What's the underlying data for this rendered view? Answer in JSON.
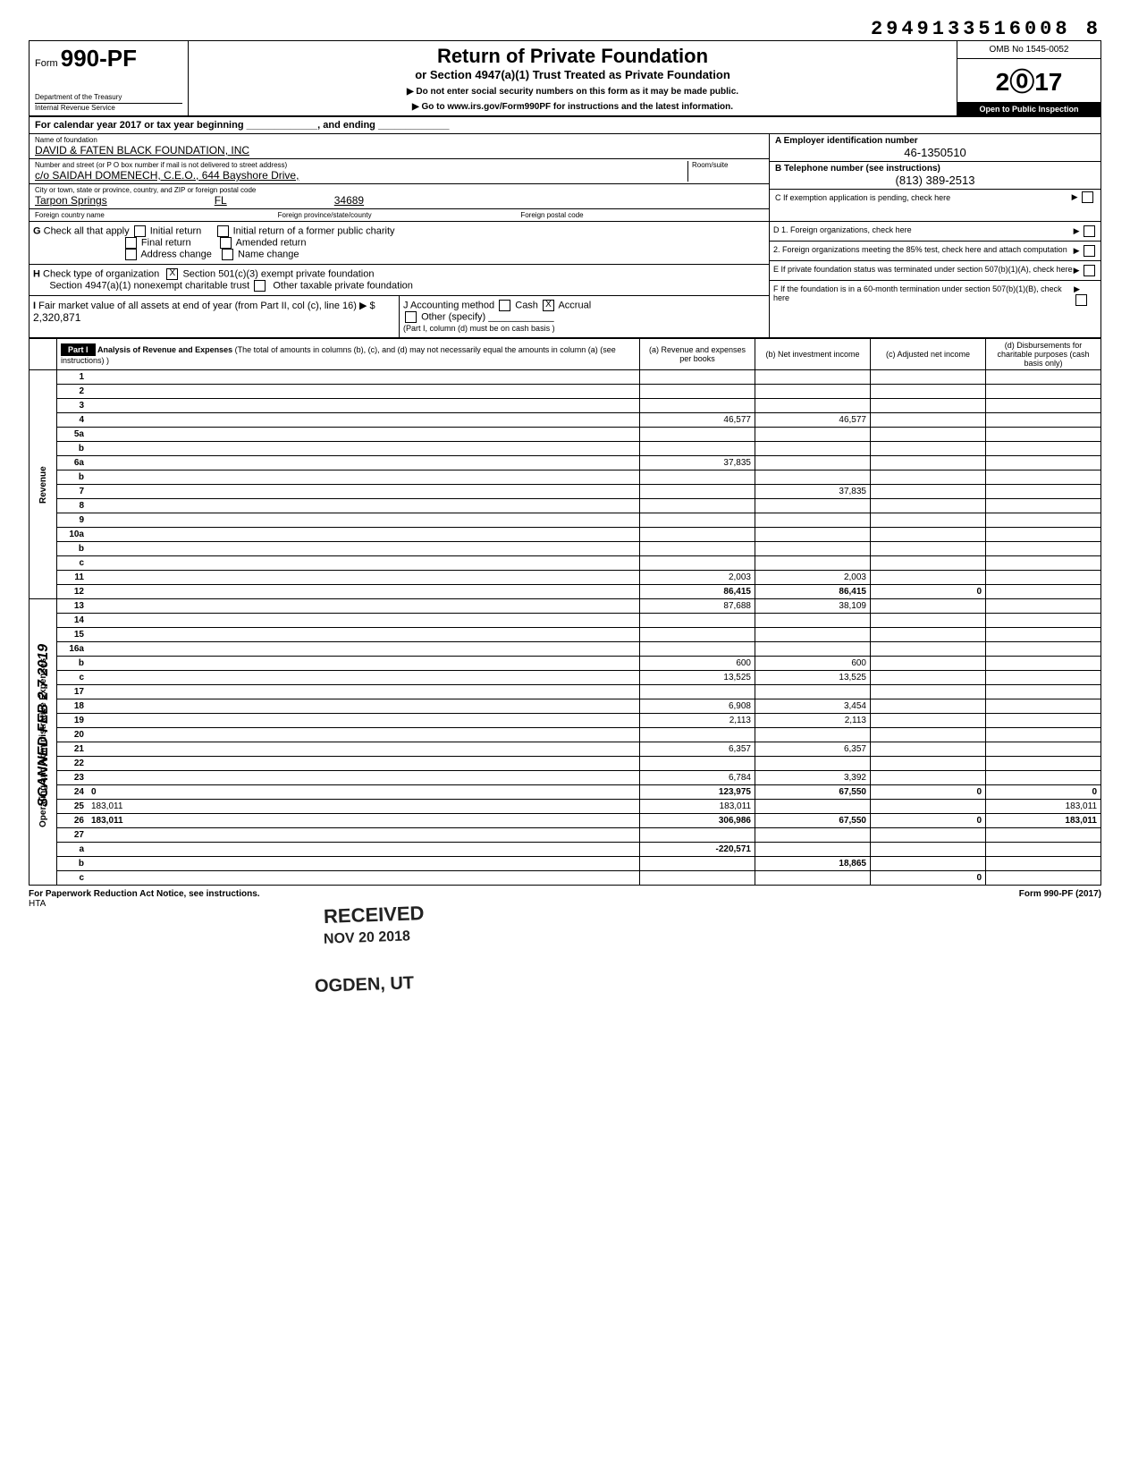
{
  "header": {
    "top_number": "2949133516008 8",
    "form_prefix": "Form",
    "form_number": "990-PF",
    "title": "Return of Private Foundation",
    "subtitle": "or Section 4947(a)(1) Trust Treated as Private Foundation",
    "note1": "Do not enter social security numbers on this form as it may be made public.",
    "note2": "Go to www.irs.gov/Form990PF for instructions and the latest information.",
    "dept1": "Department of the Treasury",
    "dept2": "Internal Revenue Service",
    "omb": "OMB No 1545-0052",
    "year": "2017",
    "year_display": "2⓪17",
    "open": "Open to Public Inspection",
    "cal_year": "For calendar year 2017 or tax year beginning _____________, and ending _____________"
  },
  "foundation": {
    "name_label": "Name of foundation",
    "name": "DAVID & FATEN BLACK FOUNDATION, INC",
    "addr_label": "Number and street (or P O box number if mail is not delivered to street address)",
    "room_label": "Room/suite",
    "addr": "c/o SAIDAH DOMENECH, C.E.O., 644 Bayshore Drive,",
    "city_label": "City or town, state or province, country, and ZIP or foreign postal code",
    "city": "Tarpon Springs",
    "state": "FL",
    "zip": "34689",
    "foreign_country_label": "Foreign country name",
    "foreign_province_label": "Foreign province/state/county",
    "foreign_postal_label": "Foreign postal code",
    "ein_label": "A Employer identification number",
    "ein": "46-1350510",
    "phone_label": "B Telephone number (see instructions)",
    "phone": "(813) 389-2513",
    "c_label": "C  If exemption application is pending, check here",
    "d1_label": "D  1. Foreign organizations, check here",
    "d2_label": "2. Foreign organizations meeting the 85% test, check here and attach computation",
    "e_label": "E  If private foundation status was terminated under section 507(b)(1)(A), check here",
    "f_label": "F  If the foundation is in a 60-month termination under section 507(b)(1)(B), check here"
  },
  "checks": {
    "g_label": "Check all that apply",
    "g_initial": "Initial return",
    "g_initial_former": "Initial return of a former public charity",
    "g_final": "Final return",
    "g_amended": "Amended return",
    "g_addr": "Address change",
    "g_name": "Name change",
    "h_label": "Check type of organization",
    "h_501c3": "Section 501(c)(3) exempt private foundation",
    "h_4947": "Section 4947(a)(1) nonexempt charitable trust",
    "h_other": "Other taxable private foundation",
    "i_label": "Fair market value of all assets at end of year (from Part II, col (c), line 16) ▶ $",
    "i_value": "2,320,871",
    "j_label": "J   Accounting method",
    "j_cash": "Cash",
    "j_accrual": "Accrual",
    "j_other": "Other (specify)",
    "j_note": "(Part I, column (d) must be on cash basis )"
  },
  "part1": {
    "label": "Part I",
    "title": "Analysis of Revenue and Expenses",
    "titlesub": "(The total of amounts in columns (b), (c), and (d) may not necessarily equal the amounts in column (a) (see instructions) )",
    "col_a": "(a) Revenue and expenses per books",
    "col_b": "(b) Net investment income",
    "col_c": "(c) Adjusted net income",
    "col_d": "(d) Disbursements for charitable purposes (cash basis only)",
    "side_revenue": "Revenue",
    "side_expenses": "Operating and Administrative Expenses"
  },
  "lines": [
    {
      "n": "1",
      "d": "",
      "a": "",
      "b": "",
      "c": ""
    },
    {
      "n": "2",
      "d": "",
      "a": "",
      "b": "",
      "c": ""
    },
    {
      "n": "3",
      "d": "",
      "a": "",
      "b": "",
      "c": ""
    },
    {
      "n": "4",
      "d": "",
      "a": "46,577",
      "b": "46,577",
      "c": ""
    },
    {
      "n": "5a",
      "d": "",
      "a": "",
      "b": "",
      "c": ""
    },
    {
      "n": "b",
      "d": "",
      "a": "",
      "b": "",
      "c": ""
    },
    {
      "n": "6a",
      "d": "",
      "a": "37,835",
      "b": "",
      "c": ""
    },
    {
      "n": "b",
      "d": "",
      "a": "",
      "b": "",
      "c": ""
    },
    {
      "n": "7",
      "d": "",
      "a": "",
      "b": "37,835",
      "c": ""
    },
    {
      "n": "8",
      "d": "",
      "a": "",
      "b": "",
      "c": ""
    },
    {
      "n": "9",
      "d": "",
      "a": "",
      "b": "",
      "c": ""
    },
    {
      "n": "10a",
      "d": "",
      "a": "",
      "b": "",
      "c": ""
    },
    {
      "n": "b",
      "d": "",
      "a": "",
      "b": "",
      "c": ""
    },
    {
      "n": "c",
      "d": "",
      "a": "",
      "b": "",
      "c": ""
    },
    {
      "n": "11",
      "d": "",
      "a": "2,003",
      "b": "2,003",
      "c": ""
    },
    {
      "n": "12",
      "d": "",
      "a": "86,415",
      "b": "86,415",
      "c": "0",
      "bold": true
    },
    {
      "n": "13",
      "d": "",
      "a": "87,688",
      "b": "38,109",
      "c": ""
    },
    {
      "n": "14",
      "d": "",
      "a": "",
      "b": "",
      "c": ""
    },
    {
      "n": "15",
      "d": "",
      "a": "",
      "b": "",
      "c": ""
    },
    {
      "n": "16a",
      "d": "",
      "a": "",
      "b": "",
      "c": ""
    },
    {
      "n": "b",
      "d": "",
      "a": "600",
      "b": "600",
      "c": ""
    },
    {
      "n": "c",
      "d": "",
      "a": "13,525",
      "b": "13,525",
      "c": ""
    },
    {
      "n": "17",
      "d": "",
      "a": "",
      "b": "",
      "c": ""
    },
    {
      "n": "18",
      "d": "",
      "a": "6,908",
      "b": "3,454",
      "c": ""
    },
    {
      "n": "19",
      "d": "",
      "a": "2,113",
      "b": "2,113",
      "c": ""
    },
    {
      "n": "20",
      "d": "",
      "a": "",
      "b": "",
      "c": ""
    },
    {
      "n": "21",
      "d": "",
      "a": "6,357",
      "b": "6,357",
      "c": ""
    },
    {
      "n": "22",
      "d": "",
      "a": "",
      "b": "",
      "c": ""
    },
    {
      "n": "23",
      "d": "",
      "a": "6,784",
      "b": "3,392",
      "c": ""
    },
    {
      "n": "24",
      "d": "0",
      "a": "123,975",
      "b": "67,550",
      "c": "0",
      "bold": true
    },
    {
      "n": "25",
      "d": "183,011",
      "a": "183,011",
      "b": "",
      "c": ""
    },
    {
      "n": "26",
      "d": "183,011",
      "a": "306,986",
      "b": "67,550",
      "c": "0",
      "bold": true
    },
    {
      "n": "27",
      "d": "",
      "a": "",
      "b": "",
      "c": "",
      "bold": true
    },
    {
      "n": "a",
      "d": "",
      "a": "-220,571",
      "b": "",
      "c": "",
      "bold": true
    },
    {
      "n": "b",
      "d": "",
      "a": "",
      "b": "18,865",
      "c": "",
      "bold": true
    },
    {
      "n": "c",
      "d": "",
      "a": "",
      "b": "",
      "c": "0",
      "bold": true
    }
  ],
  "stamps": {
    "received": "RECEIVED",
    "nov": "NOV 20 2018",
    "ogden": "OGDEN, UT",
    "scanned": "SCANNED FEB 2 7 2019"
  },
  "footer": {
    "left": "For Paperwork Reduction Act Notice, see instructions.",
    "hta": "HTA",
    "right": "Form 990-PF (2017)"
  }
}
